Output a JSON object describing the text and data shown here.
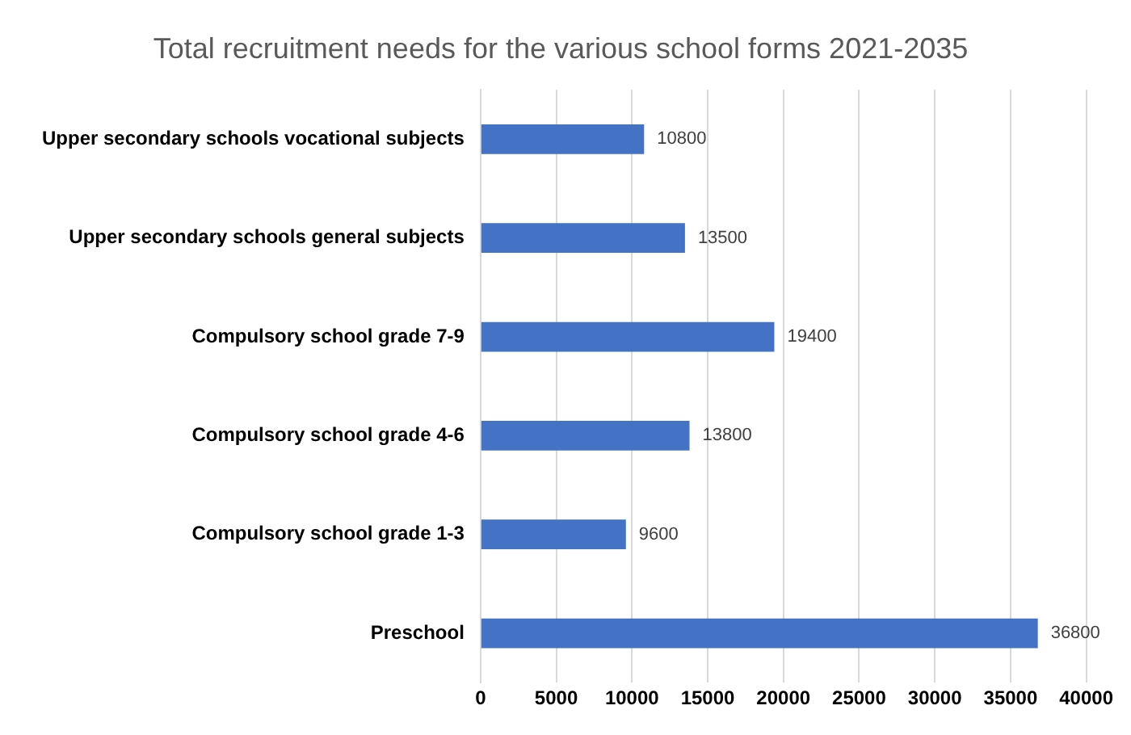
{
  "chart_data": {
    "type": "bar",
    "orientation": "horizontal",
    "title": "Total recruitment needs for the various school forms 2021-2035",
    "categories": [
      "Upper secondary schools vocational subjects",
      "Upper secondary schools general subjects",
      "Compulsory school grade 7-9",
      "Compulsory school grade 4-6",
      "Compulsory school grade 1-3",
      "Preschool"
    ],
    "values": [
      10800,
      13500,
      19400,
      13800,
      9600,
      36800
    ],
    "color": "#4472c4",
    "xlim": [
      0,
      40000
    ],
    "xticks": [
      0,
      5000,
      10000,
      15000,
      20000,
      25000,
      30000,
      35000,
      40000
    ],
    "grid": "x",
    "data_labels": true,
    "legend": false
  }
}
